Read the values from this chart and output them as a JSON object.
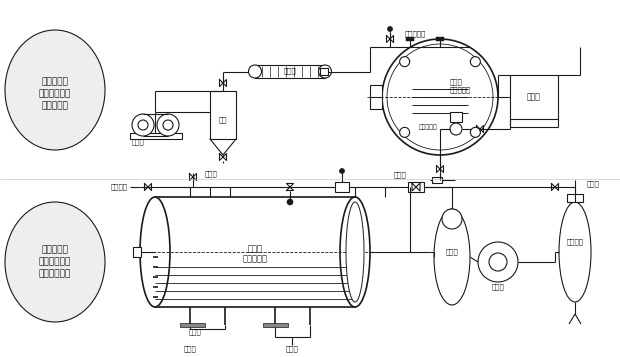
{
  "bg_color": "#ffffff",
  "line_color": "#1a1a1a",
  "text_color": "#1a1a1a",
  "title1_lines": [
    "热水加热、",
    "溶剂回收真空",
    "干燥系统图"
  ],
  "title2_lines": [
    "蒸汽加热、",
    "溶剂不回收真",
    "空干燥系统图"
  ],
  "fig_w": 6.2,
  "fig_h": 3.57,
  "dpi": 100
}
